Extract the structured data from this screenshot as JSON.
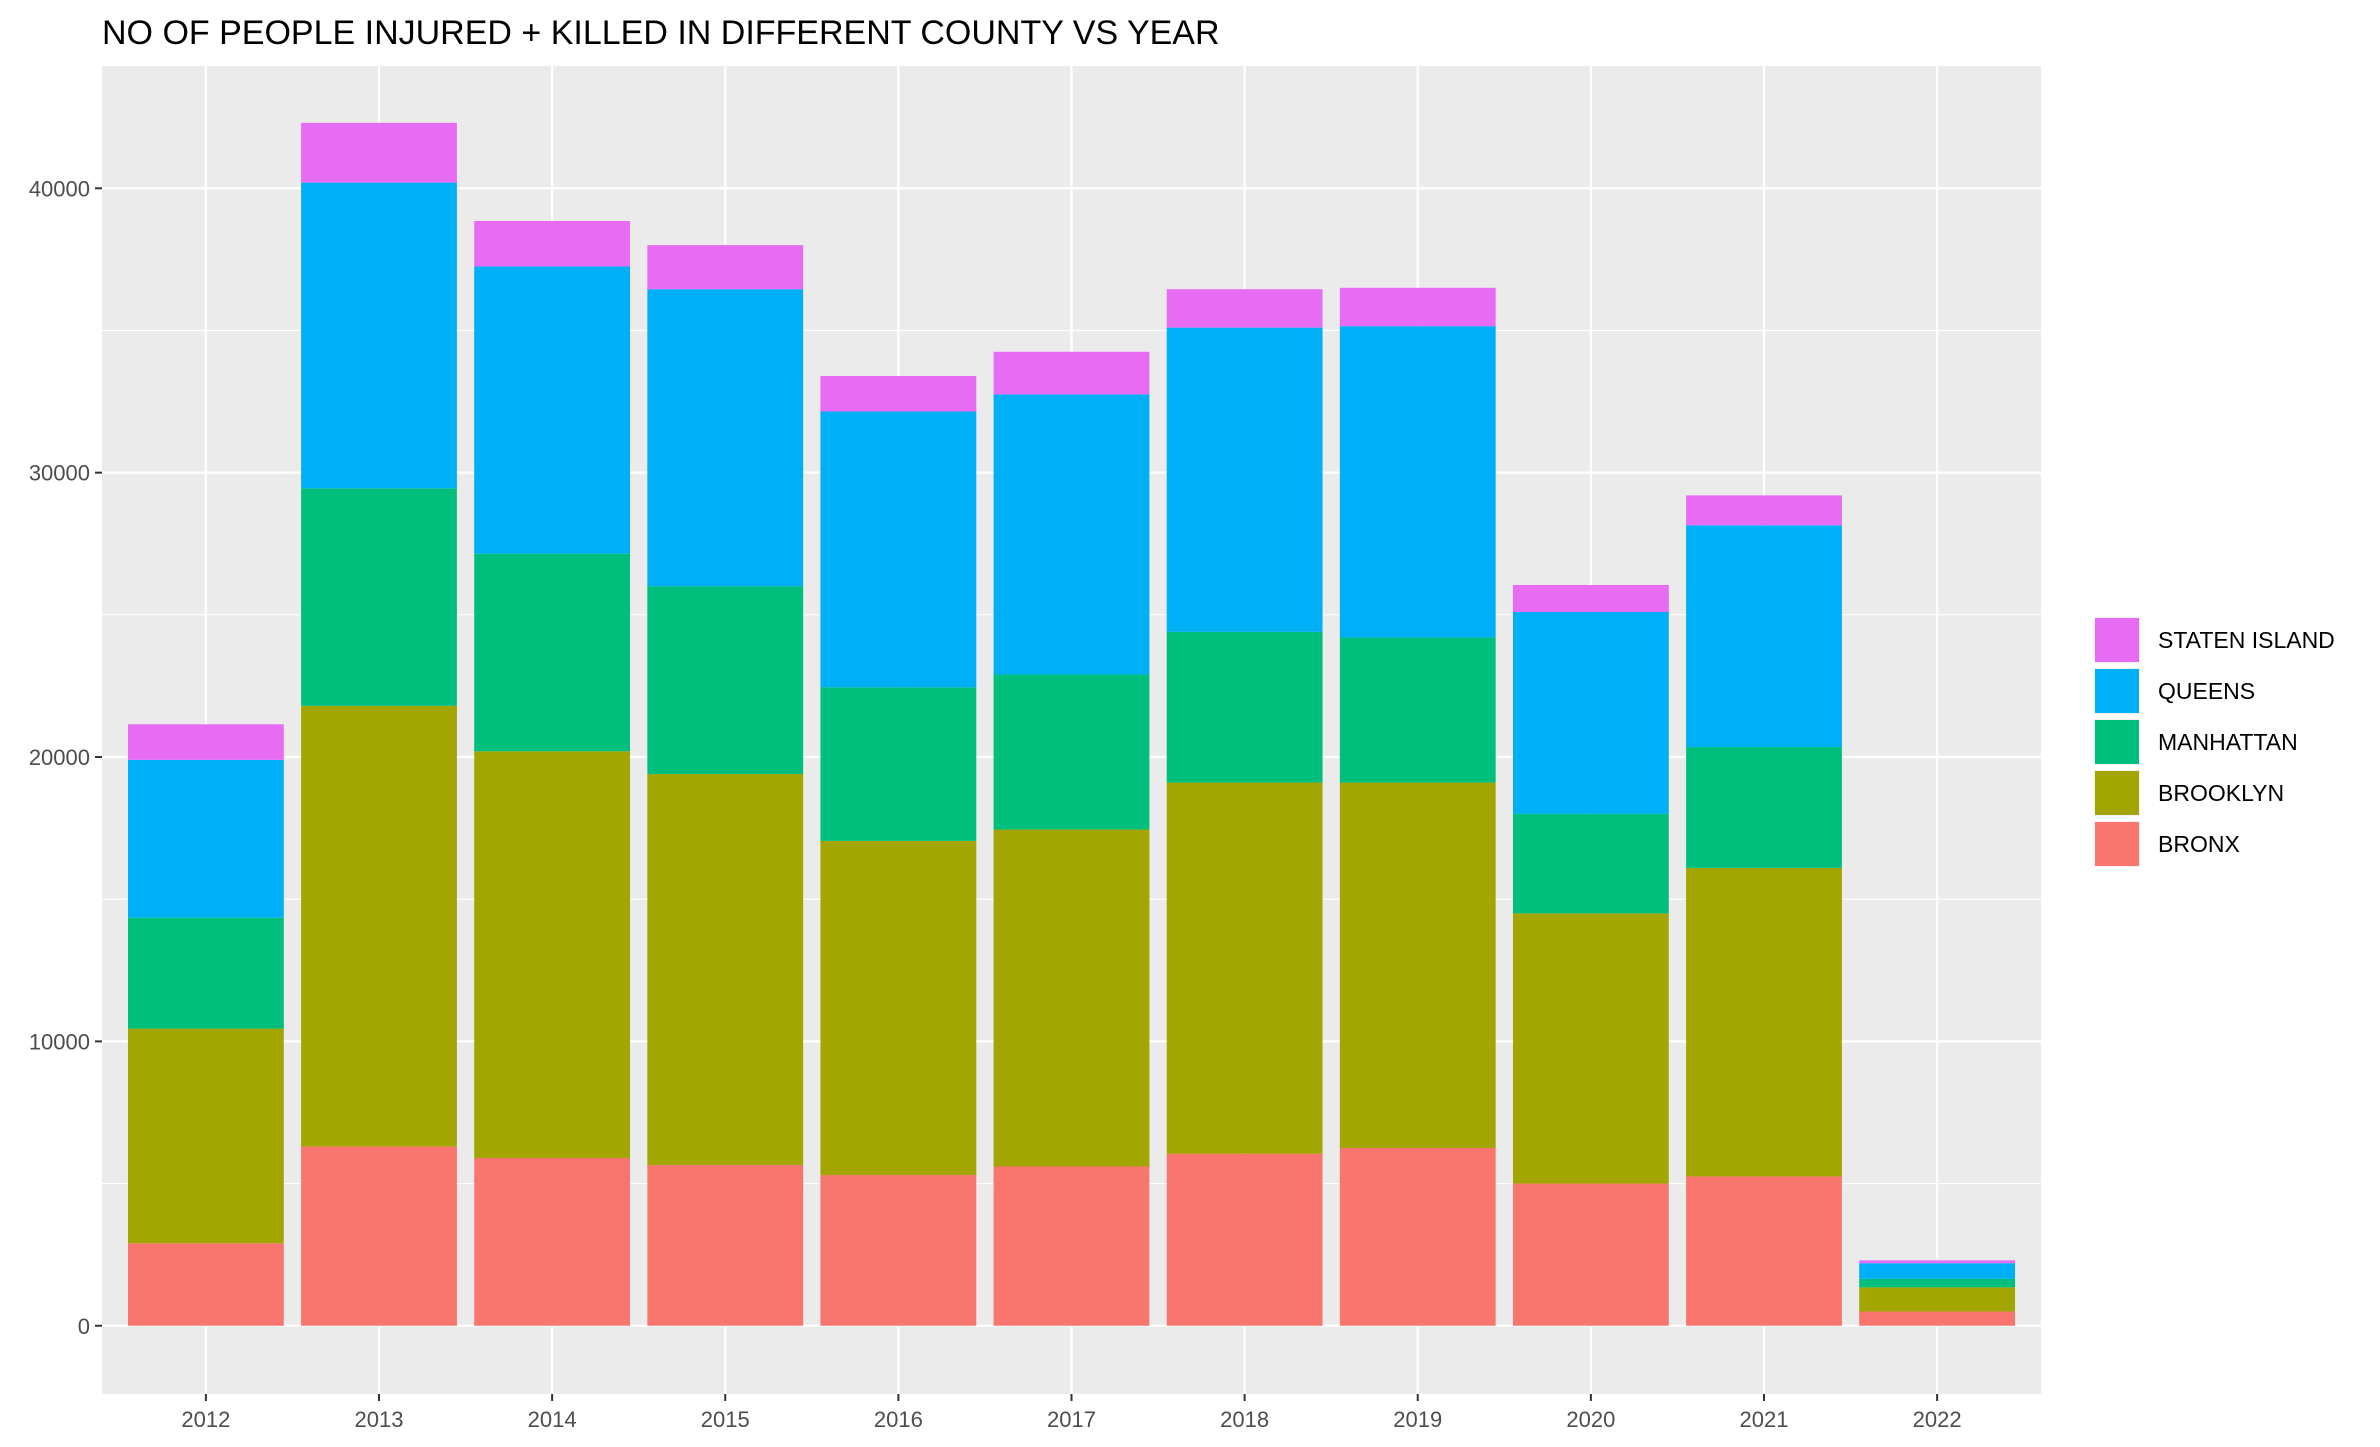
{
  "chart_data": {
    "type": "bar",
    "stacked": true,
    "title": "NO OF PEOPLE INJURED + KILLED IN DIFFERENT COUNTY VS YEAR",
    "xlabel": "",
    "ylabel": "",
    "categories": [
      "2012",
      "2013",
      "2014",
      "2015",
      "2016",
      "2017",
      "2018",
      "2019",
      "2020",
      "2021",
      "2022"
    ],
    "ylim": [
      -2400,
      44300
    ],
    "yticks": [
      0,
      10000,
      20000,
      30000,
      40000
    ],
    "grid": true,
    "legend_position": "right",
    "series": [
      {
        "name": "BRONX",
        "color": "#F8766D",
        "values": [
          2900,
          6300,
          5900,
          5650,
          5300,
          5600,
          6050,
          6250,
          5000,
          5250,
          500
        ]
      },
      {
        "name": "BROOKLYN",
        "color": "#A3A500",
        "values": [
          7550,
          15500,
          14300,
          13750,
          11750,
          11850,
          13050,
          12850,
          9500,
          10850,
          850
        ]
      },
      {
        "name": "MANHATTAN",
        "color": "#00BF7D",
        "values": [
          3900,
          7650,
          6950,
          6600,
          5400,
          5450,
          5300,
          5100,
          3500,
          4250,
          300
        ]
      },
      {
        "name": "QUEENS",
        "color": "#00B0F6",
        "values": [
          5550,
          10750,
          10100,
          10450,
          9700,
          9850,
          10700,
          10950,
          7100,
          7800,
          550
        ]
      },
      {
        "name": "STATEN ISLAND",
        "color": "#E76BF3",
        "values": [
          1250,
          2100,
          1600,
          1550,
          1250,
          1500,
          1350,
          1350,
          950,
          1050,
          100
        ]
      }
    ]
  }
}
